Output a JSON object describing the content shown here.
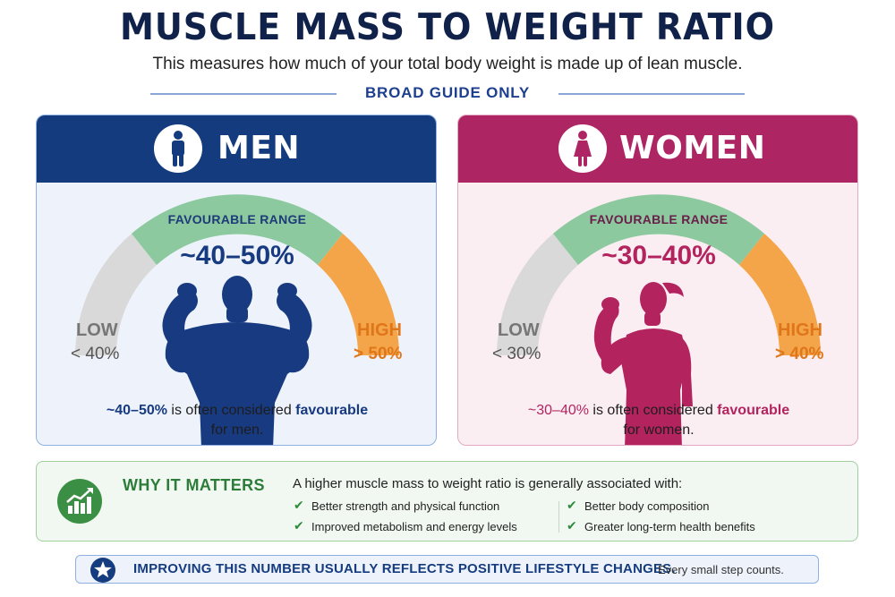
{
  "header": {
    "title": "MUSCLE MASS TO WEIGHT RATIO",
    "subtitle": "This measures how much of your total body weight is made up of lean muscle.",
    "guide": "BROAD GUIDE ONLY"
  },
  "men": {
    "heading": "MEN",
    "icon": "male-person-icon",
    "favourable_label": "FAVOURABLE RANGE",
    "range": "~40–50%",
    "low_label": "LOW",
    "low_value": "< 40%",
    "high_label": "HIGH",
    "high_value": "> 50%",
    "note_range": "~40–50%",
    "note_mid": " is often considered ",
    "note_highlight": "favourable",
    "note_end": "for men.",
    "colors": {
      "header": "#153b7f",
      "figure": "#173a80"
    }
  },
  "women": {
    "heading": "WOMEN",
    "icon": "female-person-icon",
    "favourable_label": "FAVOURABLE RANGE",
    "range": "~30–40%",
    "low_label": "LOW",
    "low_value": "< 30%",
    "high_label": "HIGH",
    "high_value": "> 40%",
    "note_range": "~30–40%",
    "note_mid": " is often considered ",
    "note_highlight": "favourable",
    "note_end": "for women.",
    "colors": {
      "header": "#ad2663",
      "figure": "#b3245f"
    }
  },
  "gauge_colors": {
    "low": "#d9d9d9",
    "favourable": "#8cc99f",
    "high": "#f4a54a"
  },
  "why": {
    "icon": "growth-chart-icon",
    "title": "WHY IT MATTERS",
    "intro": "A higher muscle mass to weight ratio is generally associated with:",
    "items": [
      "Better strength and physical function",
      "Improved metabolism and energy levels",
      "Better body composition",
      "Greater long-term health benefits"
    ]
  },
  "banner": {
    "icon": "star-icon",
    "main": "IMPROVING THIS NUMBER USUALLY REFLECTS POSITIVE LIFESTYLE CHANGES.",
    "sub": "Every small step counts."
  }
}
